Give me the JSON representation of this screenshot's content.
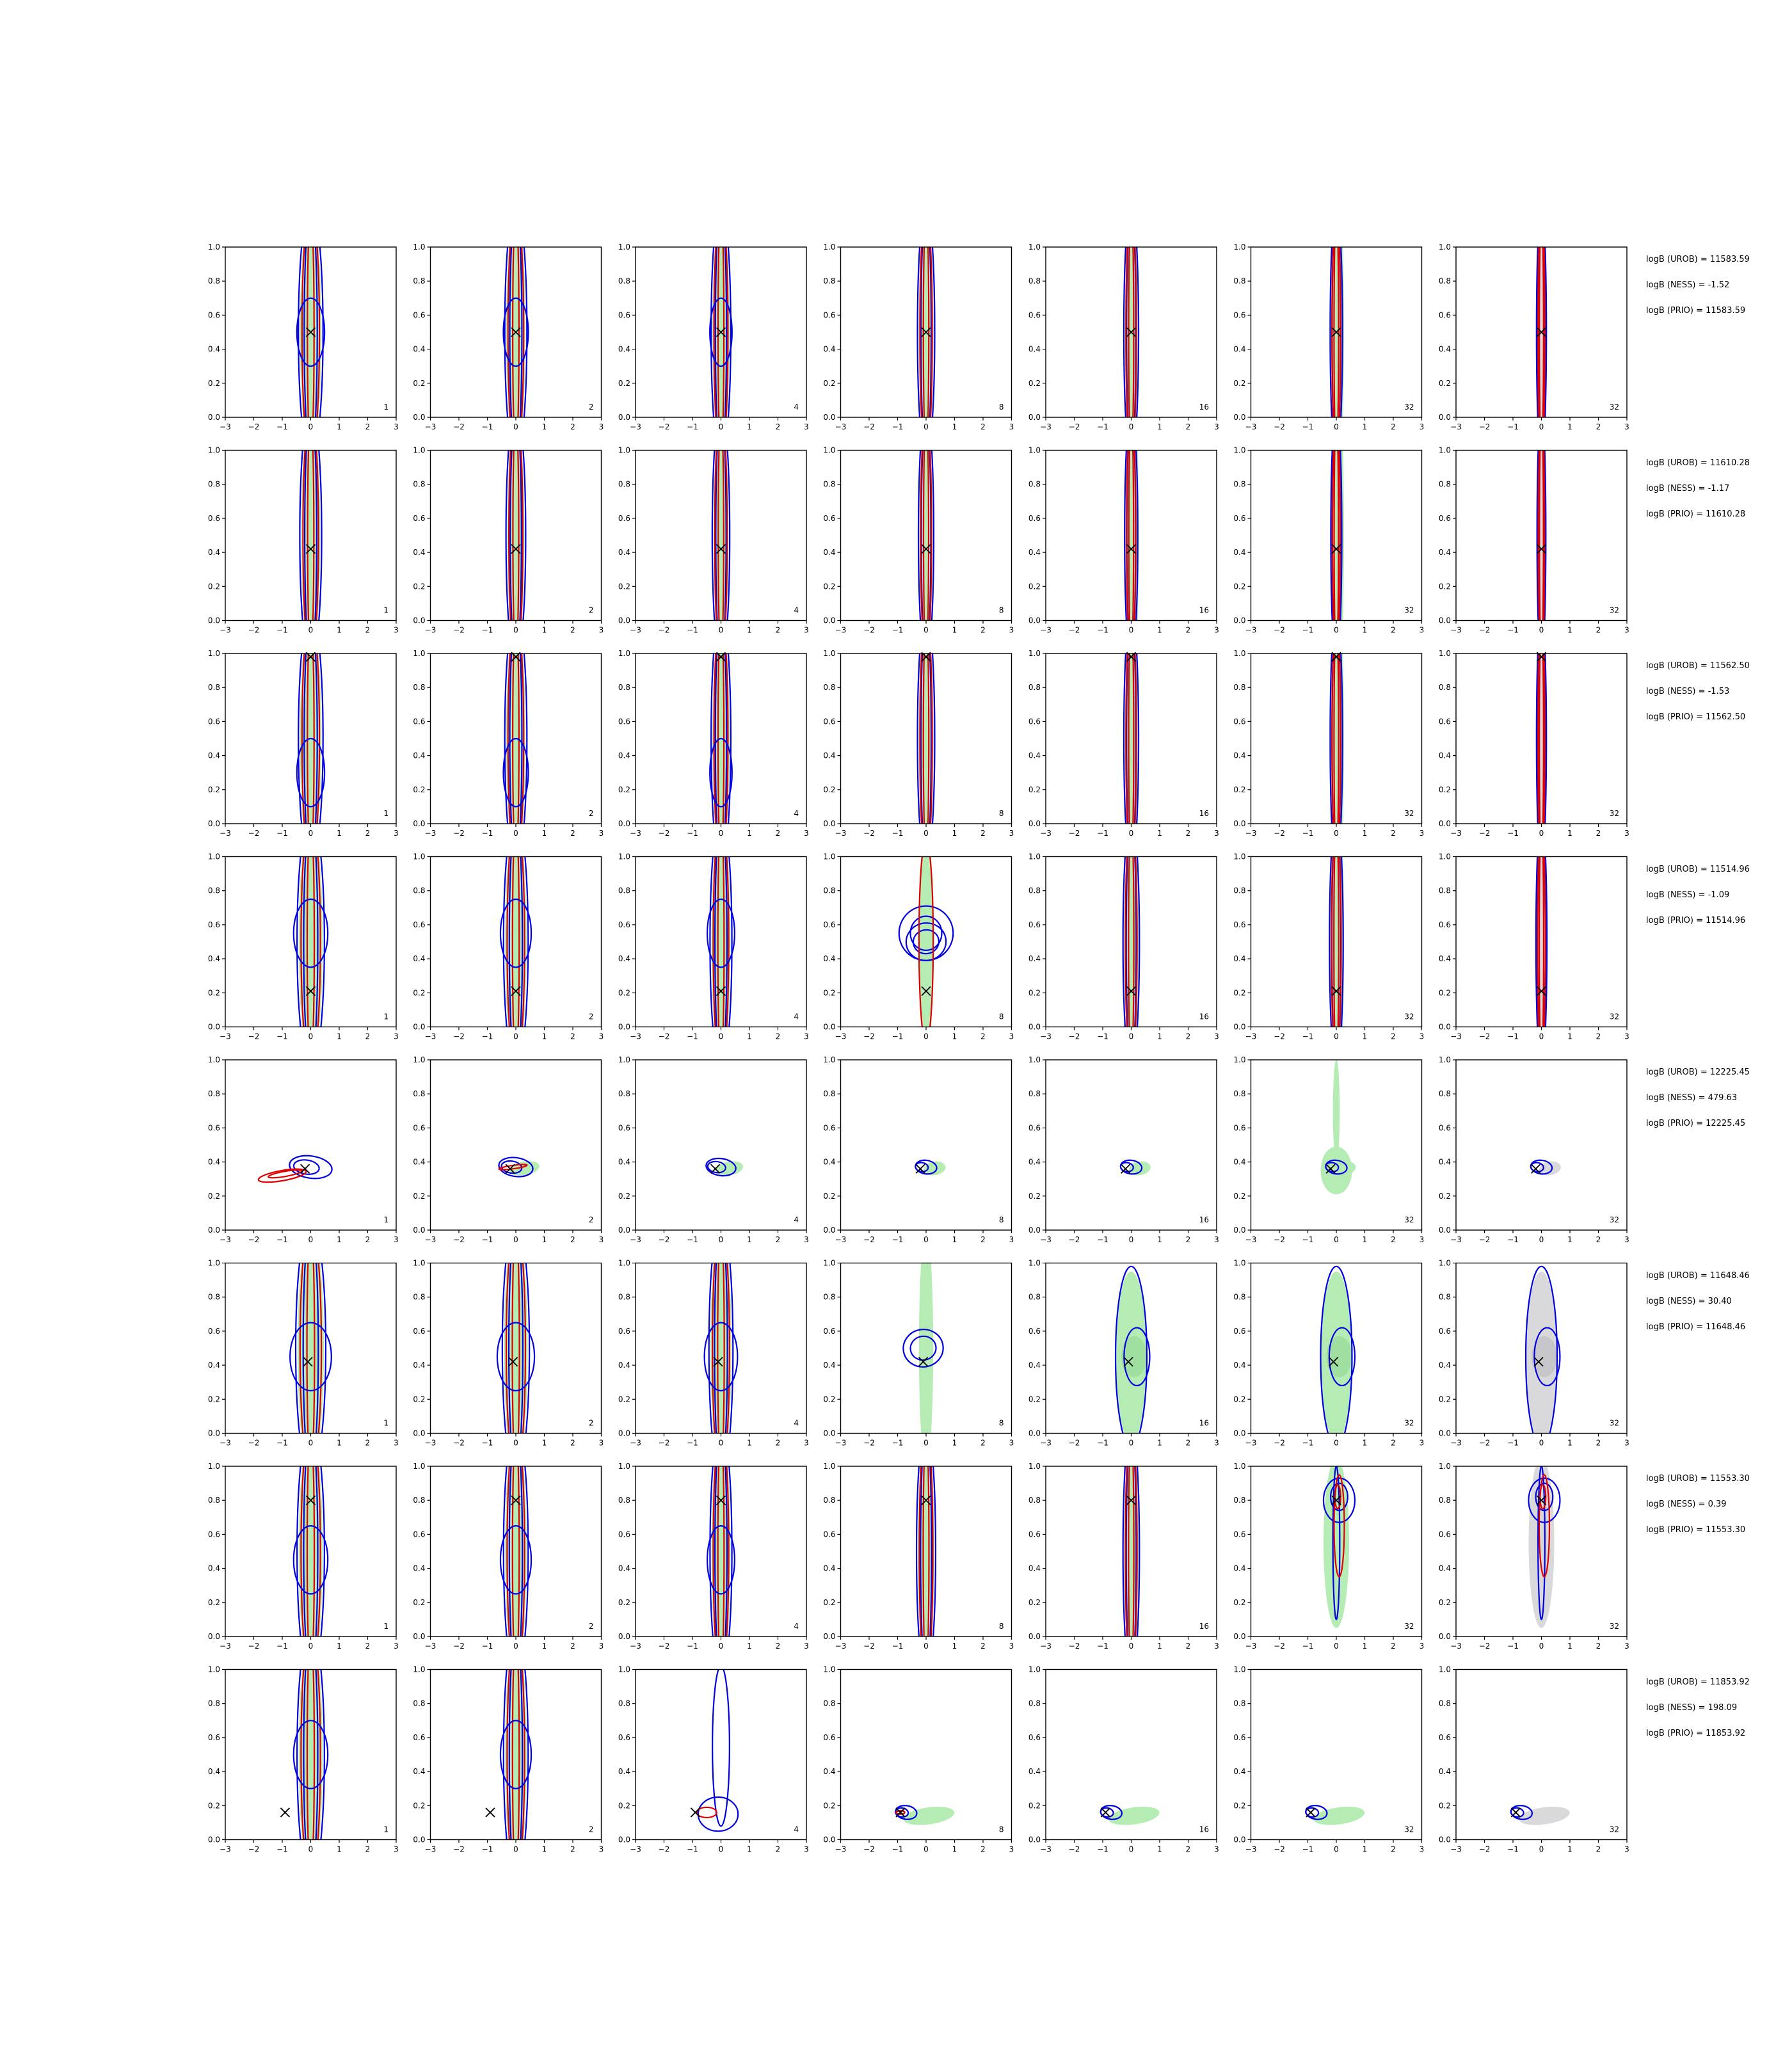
{
  "colors": {
    "green": "#b4ecb4",
    "gray": "#d9d9dc",
    "red": "#e00000",
    "blue": "#0000e0",
    "marker": "#000000"
  },
  "chart_data": {
    "type": "contour",
    "grid": {
      "rows": 8,
      "cols": 7
    },
    "xlim": [
      -3,
      3
    ],
    "ylim": [
      0,
      1
    ],
    "xticks": [
      "−3",
      "−2",
      "−1",
      "0",
      "1",
      "2",
      "3"
    ],
    "yticks": [
      "0.0",
      "0.2",
      "0.4",
      "0.6",
      "0.8",
      "1.0"
    ],
    "panel_labels": [
      "1",
      "2",
      "4",
      "8",
      "16",
      "32",
      "32"
    ],
    "rows": [
      {
        "truth": [
          0.0,
          0.5
        ],
        "shape": "vertical",
        "blob": 0.5,
        "vwide": 0.9,
        "mode": [
          0,
          0,
          0,
          0,
          0,
          0,
          0
        ],
        "stats": {
          "urob": "logB (UROB) = 11583.59",
          "ness": "logB (NESS) = -1.52",
          "prio": "logB (PRIO) = 11583.59"
        }
      },
      {
        "truth": [
          0.0,
          0.42
        ],
        "shape": "vertical",
        "blob": 0.0,
        "vwide": 0.8,
        "mode": [
          0,
          0,
          0,
          0,
          0,
          0,
          0
        ],
        "stats": {
          "urob": "logB (UROB) = 11610.28",
          "ness": "logB (NESS) = -1.17",
          "prio": "logB (PRIO) = 11610.28"
        }
      },
      {
        "truth": [
          0.0,
          0.98
        ],
        "shape": "vertical",
        "blob": 0.3,
        "vwide": 0.9,
        "mode": [
          0,
          0,
          0,
          0,
          0,
          0,
          0
        ],
        "stats": {
          "urob": "logB (UROB) = 11562.50",
          "ness": "logB (NESS) = -1.53",
          "prio": "logB (PRIO) = 11562.50"
        }
      },
      {
        "truth": [
          0.0,
          0.21
        ],
        "shape": "vertical",
        "blob": 0.55,
        "vwide": 1.0,
        "mode": [
          0,
          0,
          0,
          1,
          0,
          0,
          0
        ],
        "stats": {
          "urob": "logB (UROB) = 11514.96",
          "ness": "logB (NESS) = -1.09",
          "prio": "logB (PRIO) = 11514.96"
        }
      },
      {
        "truth": [
          -0.2,
          0.36
        ],
        "shape": "tilted",
        "blob": 0.0,
        "vwide": 0.0,
        "mode": [
          2,
          2,
          2,
          2,
          2,
          2,
          2
        ],
        "stats": {
          "urob": "logB (UROB) = 12225.45",
          "ness": "logB (NESS) = 479.63",
          "prio": "logB (PRIO) = 12225.45"
        }
      },
      {
        "truth": [
          -0.1,
          0.42
        ],
        "shape": "vertical",
        "blob": 0.45,
        "vwide": 1.1,
        "mode": [
          0,
          0,
          0,
          1,
          3,
          3,
          3
        ],
        "stats": {
          "urob": "logB (UROB) = 11648.46",
          "ness": "logB (NESS) = 30.40",
          "prio": "logB (PRIO) = 11648.46"
        }
      },
      {
        "truth": [
          0.0,
          0.8
        ],
        "shape": "vertical",
        "blob": 0.45,
        "vwide": 1.0,
        "mode": [
          0,
          0,
          0,
          0,
          0,
          4,
          4
        ],
        "stats": {
          "urob": "logB (UROB) = 11553.30",
          "ness": "logB (NESS) = 0.39",
          "prio": "logB (PRIO) = 11553.30"
        }
      },
      {
        "truth": [
          -0.9,
          0.16
        ],
        "shape": "vertical",
        "blob": 0.5,
        "vwide": 1.0,
        "mode": [
          0,
          0,
          5,
          2,
          2,
          2,
          2
        ],
        "stats": {
          "urob": "logB (UROB) = 11853.92",
          "ness": "logB (NESS) = 198.09",
          "prio": "logB (PRIO) = 11853.92"
        }
      }
    ]
  }
}
